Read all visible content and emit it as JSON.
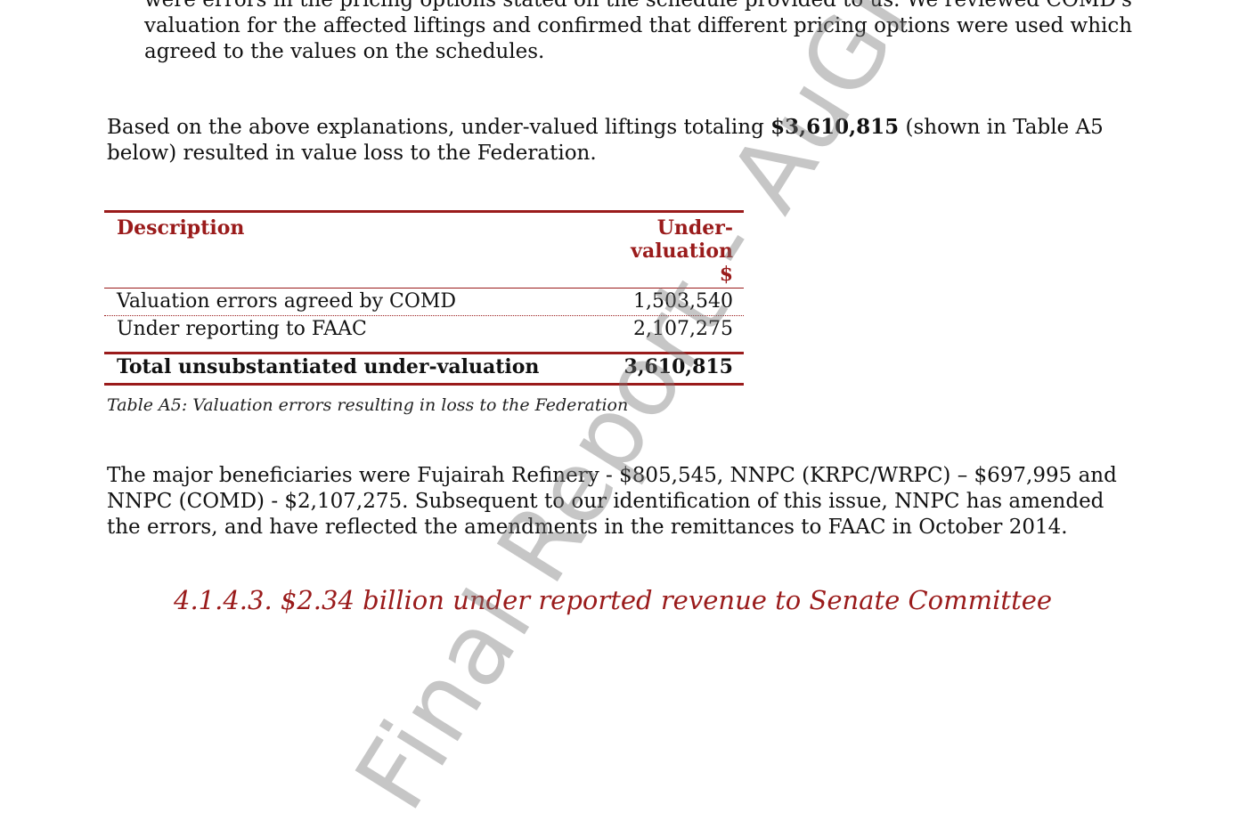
{
  "paragraph_top": {
    "line1": "were errors in the pricing options stated on the schedule provided to us. We reviewed COMD's",
    "line2": "valuation for the affected liftings and confirmed that different pricing options were used which",
    "line3": "agreed to the values on the schedules."
  },
  "paragraph_summary": {
    "before": "Based on the above explanations, under-valued liftings totaling ",
    "amount": "$3,610,815",
    "after": " (shown in Table A5 below) resulted in value loss to the Federation."
  },
  "table": {
    "header_description": "Description",
    "header_value_line1": "Under-",
    "header_value_line2": "valuation",
    "header_value_line3": "$",
    "rows": [
      {
        "description": "Valuation errors agreed by COMD",
        "value": "1,503,540"
      },
      {
        "description": "Under reporting to FAAC",
        "value": "2,107,275"
      }
    ],
    "total": {
      "description": "Total unsubstantiated under-valuation",
      "value": "3,610,815"
    },
    "caption": "Table A5: Valuation errors resulting in loss to the Federation"
  },
  "paragraph_beneficiaries": "The major beneficiaries were Fujairah Refinery - $805,545,  NNPC (KRPC/WRPC) – $697,995 and NNPC (COMD) - $2,107,275.  Subsequent to our identification of this issue, NNPC has amended the errors, and have reflected the amendments in the remittances to FAAC in October 2014.",
  "section_heading": "4.1.4.3. $2.34 billion under reported revenue to Senate Committee",
  "watermark": "Final Report - AuGF's"
}
